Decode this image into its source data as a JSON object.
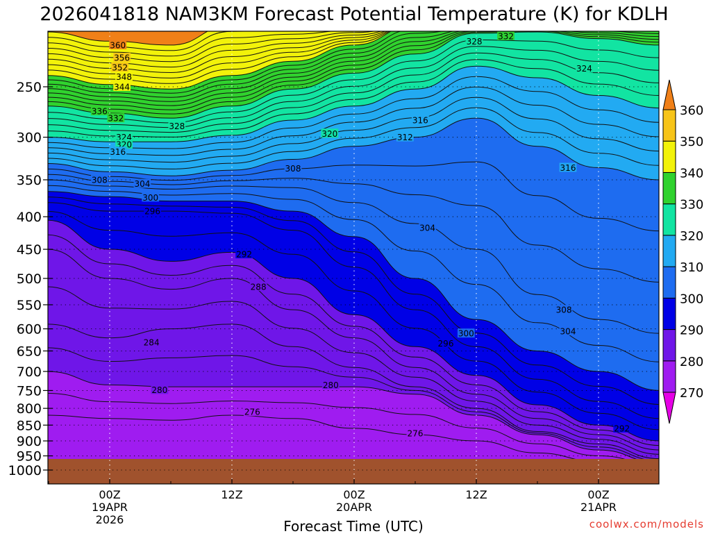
{
  "chart_data": {
    "type": "filled-contour",
    "title": "2026041818 NAM3KM Forecast Potential Temperature (K) for KDLH",
    "xlabel": "Forecast Time (UTC)",
    "ylabel": "",
    "watermark": "coolwx.com/models",
    "y_axis": {
      "unit": "hPa",
      "scale": "log-pressure",
      "range": [
        1000,
        200
      ],
      "ticks": [
        250,
        300,
        350,
        400,
        450,
        500,
        550,
        600,
        650,
        700,
        750,
        800,
        850,
        900,
        950,
        1000
      ]
    },
    "x_axis": {
      "unit": "forecast hour",
      "range": [
        -6,
        54
      ],
      "ticks": [
        {
          "hour": 0,
          "lines": [
            "00Z",
            "19APR",
            "2026"
          ]
        },
        {
          "hour": 12,
          "lines": [
            "12Z"
          ]
        },
        {
          "hour": 24,
          "lines": [
            "00Z",
            "20APR"
          ]
        },
        {
          "hour": 36,
          "lines": [
            "12Z"
          ]
        },
        {
          "hour": 48,
          "lines": [
            "00Z",
            "21APR"
          ]
        }
      ]
    },
    "colorbar": {
      "levels": [
        270,
        280,
        290,
        300,
        310,
        320,
        330,
        340,
        350,
        360
      ],
      "colors": [
        "#e600e6",
        "#9f1cf0",
        "#6f16e8",
        "#0000e6",
        "#1e6cf0",
        "#22aaf2",
        "#12e4a2",
        "#30d22e",
        "#f2f20a",
        "#f7c418",
        "#f08018"
      ]
    },
    "contour_interval_K": 2,
    "contour_labels": [
      {
        "text": "360",
        "hour": 0.8,
        "p": 215
      },
      {
        "text": "356",
        "hour": 1.2,
        "p": 225
      },
      {
        "text": "352",
        "hour": 1.0,
        "p": 233
      },
      {
        "text": "348",
        "hour": 1.4,
        "p": 241
      },
      {
        "text": "344",
        "hour": 1.2,
        "p": 250
      },
      {
        "text": "336",
        "hour": -1.0,
        "p": 273
      },
      {
        "text": "332",
        "hour": 0.6,
        "p": 280
      },
      {
        "text": "328",
        "hour": 6.6,
        "p": 288
      },
      {
        "text": "324",
        "hour": 1.4,
        "p": 300
      },
      {
        "text": "320",
        "hour": 1.4,
        "p": 308
      },
      {
        "text": "316",
        "hour": 0.8,
        "p": 316
      },
      {
        "text": "308",
        "hour": -1.0,
        "p": 350
      },
      {
        "text": "304",
        "hour": 3.2,
        "p": 355
      },
      {
        "text": "300",
        "hour": 4.0,
        "p": 373
      },
      {
        "text": "296",
        "hour": 4.2,
        "p": 392
      },
      {
        "text": "292",
        "hour": 13.2,
        "p": 458
      },
      {
        "text": "288",
        "hour": 14.6,
        "p": 515
      },
      {
        "text": "284",
        "hour": 4.1,
        "p": 630
      },
      {
        "text": "280",
        "hour": 4.9,
        "p": 748
      },
      {
        "text": "280",
        "hour": 21.7,
        "p": 735
      },
      {
        "text": "276",
        "hour": 14.0,
        "p": 810
      },
      {
        "text": "276",
        "hour": 30.0,
        "p": 875
      },
      {
        "text": "320",
        "hour": 21.6,
        "p": 296
      },
      {
        "text": "316",
        "hour": 30.5,
        "p": 282
      },
      {
        "text": "312",
        "hour": 29.0,
        "p": 300
      },
      {
        "text": "308",
        "hour": 18.0,
        "p": 336
      },
      {
        "text": "304",
        "hour": 31.2,
        "p": 416
      },
      {
        "text": "300",
        "hour": 35.0,
        "p": 610
      },
      {
        "text": "296",
        "hour": 33.0,
        "p": 632
      },
      {
        "text": "308",
        "hour": 44.6,
        "p": 560
      },
      {
        "text": "304",
        "hour": 45.0,
        "p": 605
      },
      {
        "text": "292",
        "hour": 50.3,
        "p": 860
      },
      {
        "text": "328",
        "hour": 35.8,
        "p": 212
      },
      {
        "text": "332",
        "hour": 38.9,
        "p": 208
      },
      {
        "text": "324",
        "hour": 46.6,
        "p": 234
      },
      {
        "text": "316",
        "hour": 45.0,
        "p": 335
      }
    ],
    "isentropes_K_sample": {
      "hours": [
        -6,
        0,
        6,
        12,
        18,
        24,
        30,
        36,
        42,
        48,
        54
      ],
      "levels_hPa": [
        200,
        250,
        300,
        350,
        400,
        450,
        500,
        550,
        600,
        650,
        700,
        750,
        800,
        850,
        900,
        950,
        1000
      ],
      "note": "approximate contour heights (hPa) per isentrope, read off the figure",
      "contours": {
        "360": [
          205,
          212,
          215,
          200,
          200,
          200,
          200,
          200,
          200,
          200,
          200
        ],
        "344": [
          240,
          248,
          252,
          240,
          228,
          215,
          200,
          200,
          200,
          200,
          200
        ],
        "330": [
          268,
          275,
          280,
          268,
          252,
          238,
          222,
          206,
          205,
          210,
          215
        ],
        "320": [
          300,
          305,
          305,
          298,
          282,
          268,
          252,
          232,
          242,
          258,
          270
        ],
        "310": [
          330,
          340,
          345,
          338,
          325,
          310,
          300,
          280,
          310,
          335,
          350
        ],
        "304": [
          350,
          358,
          362,
          358,
          360,
          380,
          410,
          450,
          530,
          580,
          610
        ],
        "300": [
          365,
          372,
          378,
          378,
          392,
          430,
          500,
          580,
          650,
          700,
          750
        ],
        "296": [
          380,
          392,
          392,
          395,
          420,
          480,
          560,
          640,
          720,
          780,
          830
        ],
        "292": [
          405,
          450,
          470,
          455,
          500,
          570,
          640,
          710,
          790,
          850,
          900
        ],
        "288": [
          450,
          500,
          520,
          500,
          560,
          620,
          690,
          760,
          830,
          880,
          930
        ],
        "284": [
          590,
          620,
          600,
          590,
          640,
          690,
          740,
          800,
          870,
          910,
          960
        ],
        "280": [
          700,
          735,
          740,
          740,
          740,
          740,
          760,
          820,
          880,
          930,
          975
        ],
        "276": [
          820,
          830,
          835,
          820,
          830,
          860,
          880,
          900,
          940,
          970,
          990
        ]
      }
    }
  }
}
